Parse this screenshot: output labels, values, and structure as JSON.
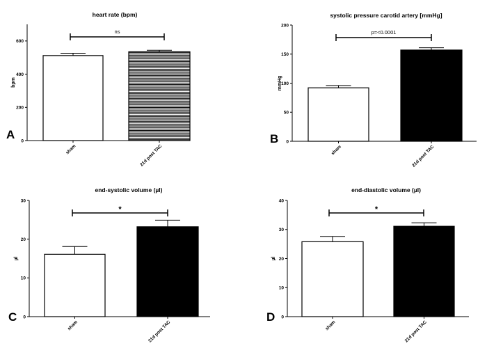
{
  "chart_data": [
    {
      "type": "bar",
      "panel": "A",
      "title": "heart rate (bpm)",
      "ylabel": "bpm",
      "categories": [
        "sham",
        "21d post TAC"
      ],
      "values": [
        512,
        535
      ],
      "errors": [
        14,
        9
      ],
      "fills": [
        "white",
        "hatched"
      ],
      "ylim": [
        0,
        700
      ],
      "yticks": [
        "0",
        "200",
        "400",
        "600"
      ],
      "annotation": "ns"
    },
    {
      "type": "bar",
      "panel": "B",
      "title": "systolic pressure carotid artery [mmHg]",
      "ylabel": "mmHg",
      "categories": [
        "sham",
        "21d post TAC"
      ],
      "values": [
        92,
        157
      ],
      "errors": [
        4,
        4
      ],
      "fills": [
        "white",
        "black"
      ],
      "ylim": [
        0,
        200
      ],
      "yticks": [
        "0",
        "50",
        "100",
        "150",
        "200"
      ],
      "annotation": "p=<0.0001"
    },
    {
      "type": "bar",
      "panel": "C",
      "title": "end-systolic volume (µl)",
      "ylabel": "µl",
      "categories": [
        "sham",
        "21d post TAC"
      ],
      "values": [
        16.1,
        23.2
      ],
      "errors": [
        2.0,
        1.7
      ],
      "fills": [
        "white",
        "black"
      ],
      "ylim": [
        0,
        30
      ],
      "yticks": [
        "0",
        "10",
        "20",
        "30"
      ],
      "annotation": "*"
    },
    {
      "type": "bar",
      "panel": "D",
      "title": "end-diastolic volume (µl)",
      "ylabel": "µl",
      "categories": [
        "sham",
        "21d post TAC"
      ],
      "values": [
        25.8,
        31.1
      ],
      "errors": [
        1.8,
        1.2
      ],
      "fills": [
        "white",
        "black"
      ],
      "ylim": [
        0,
        40
      ],
      "yticks": [
        "0",
        "10",
        "20",
        "30",
        "40"
      ],
      "annotation": "*"
    }
  ]
}
